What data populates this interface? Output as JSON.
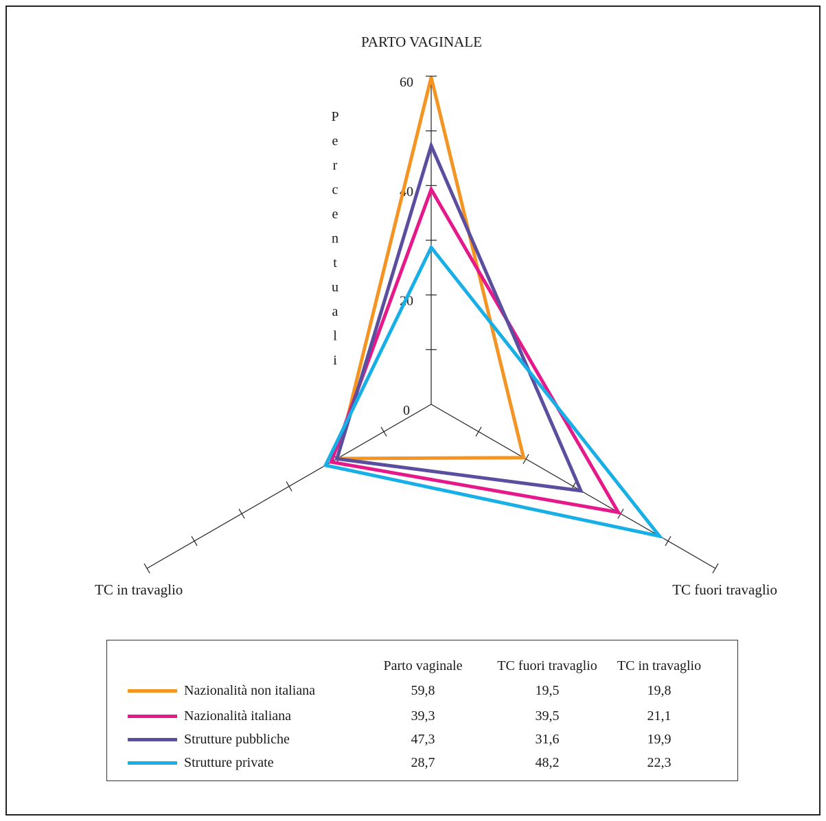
{
  "chart_data": {
    "type": "radar",
    "axes": [
      "PARTO VAGINALE",
      "TC fuori travaglio",
      "TC in travaglio"
    ],
    "ylabel": "Percentuali",
    "radial_ticks": [
      0,
      20,
      40,
      60
    ],
    "rmax": 60,
    "series": [
      {
        "name": "Nazionalità non italiana",
        "color": "#f39423",
        "values": [
          59.8,
          19.5,
          19.8
        ]
      },
      {
        "name": "Nazionalità italiana",
        "color": "#e5198a",
        "values": [
          39.3,
          39.5,
          21.1
        ]
      },
      {
        "name": "Strutture pubbliche",
        "color": "#5b4e9e",
        "values": [
          47.3,
          31.6,
          19.9
        ]
      },
      {
        "name": "Strutture private",
        "color": "#18aee6",
        "values": [
          28.7,
          48.2,
          22.3
        ]
      }
    ],
    "table": {
      "columns": [
        "Parto vaginale",
        "TC fuori travaglio",
        "TC in travaglio"
      ],
      "rows": [
        [
          "59,8",
          "19,5",
          "19,8"
        ],
        [
          "39,3",
          "39,5",
          "21,1"
        ],
        [
          "47,3",
          "31,6",
          "19,9"
        ],
        [
          "28,7",
          "48,2",
          "22,3"
        ]
      ]
    }
  }
}
